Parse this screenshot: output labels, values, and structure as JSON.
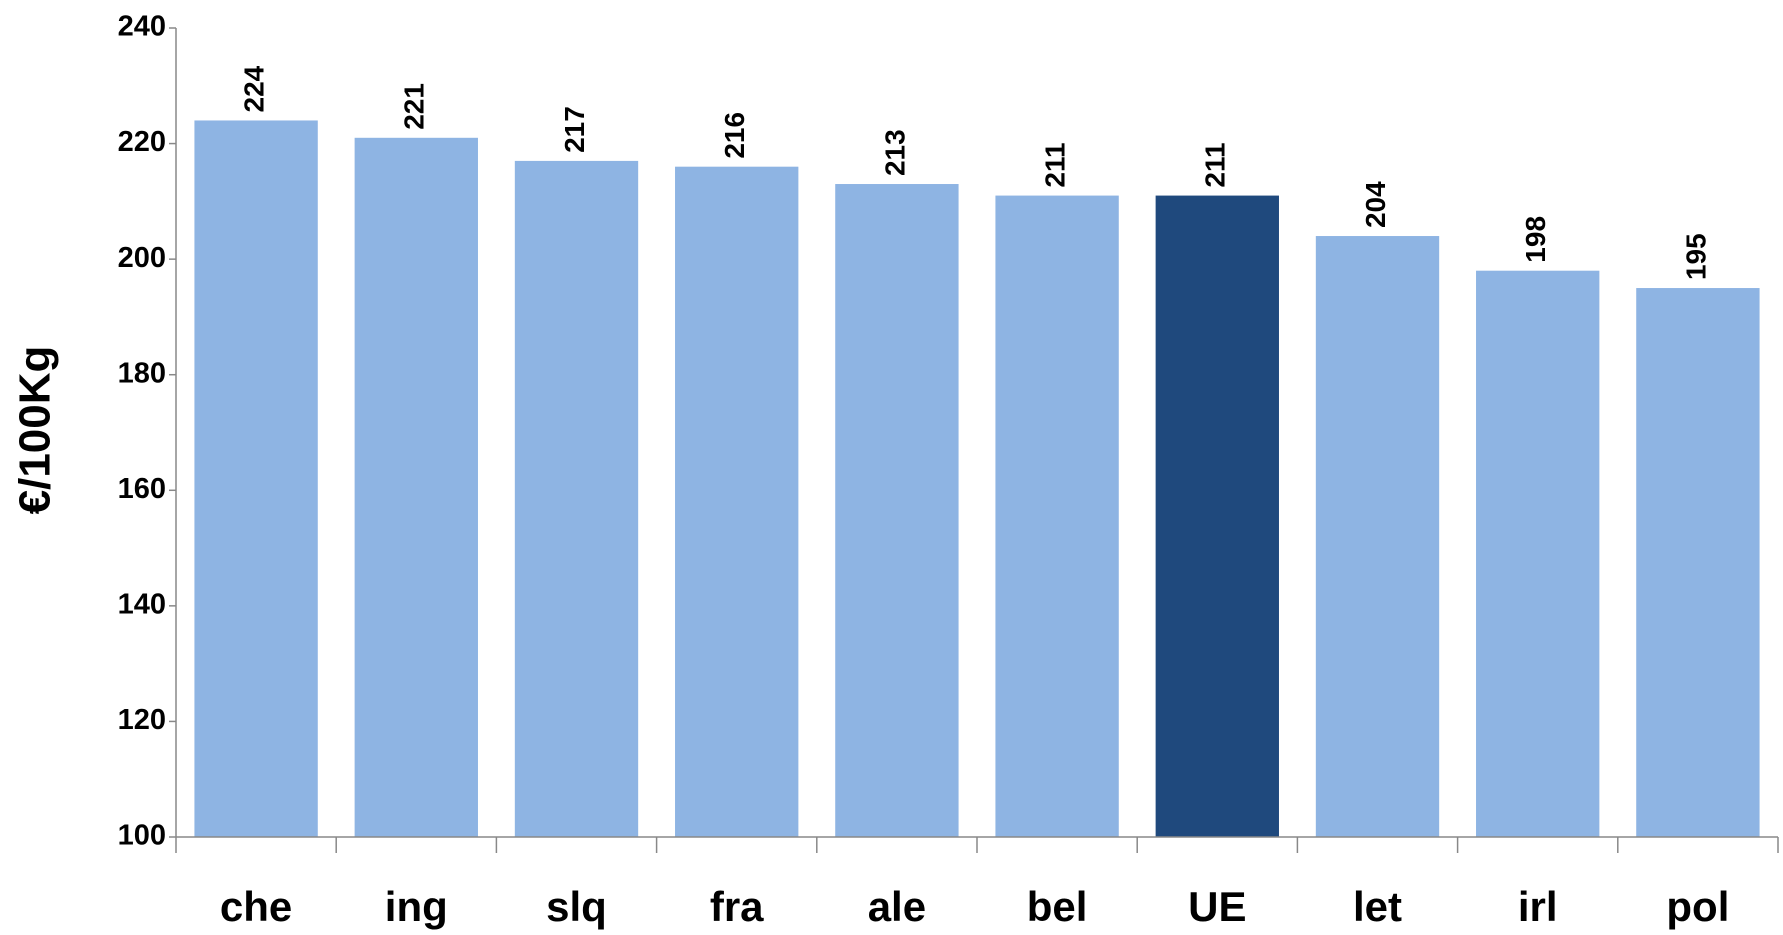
{
  "chart_data": {
    "type": "bar",
    "y_label": "€/100Kg",
    "categories": [
      "che",
      "ing",
      "slq",
      "fra",
      "ale",
      "bel",
      "UE",
      "let",
      "irl",
      "pol"
    ],
    "values": [
      224,
      221,
      217,
      216,
      213,
      211,
      211,
      204,
      198,
      195
    ],
    "colors": [
      "#8eb4e3",
      "#8eb4e3",
      "#8eb4e3",
      "#8eb4e3",
      "#8eb4e3",
      "#8eb4e3",
      "#1f497d",
      "#8eb4e3",
      "#8eb4e3",
      "#8eb4e3"
    ],
    "ylim": [
      100,
      240
    ],
    "yticks": [
      100,
      120,
      140,
      160,
      180,
      200,
      220,
      240
    ],
    "grid": false
  }
}
